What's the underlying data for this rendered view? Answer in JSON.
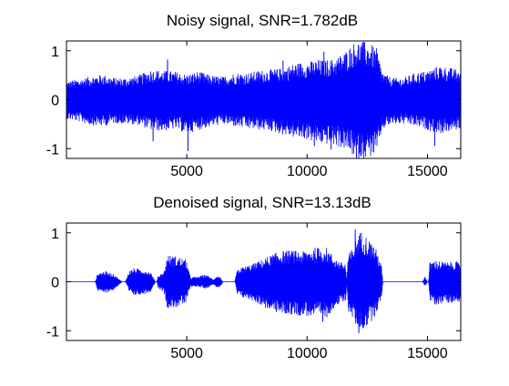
{
  "figure": {
    "background": "#ffffff",
    "line_color": "#0000ff",
    "axes_color": "#000000"
  },
  "chart_data": [
    {
      "type": "line",
      "title": "Noisy signal, SNR=1.782dB",
      "xlim": [
        1,
        16384
      ],
      "ylim": [
        -1.2,
        1.2
      ],
      "xticks": [
        5000,
        10000,
        15000
      ],
      "xtick_labels": [
        "5000",
        "10000",
        "15000"
      ],
      "yticks": [
        1,
        0,
        -1
      ],
      "ytick_labels": [
        "1",
        "0",
        "-1"
      ],
      "grid": false,
      "series": [
        {
          "color": "#0000ff",
          "envelope": {
            "x": [
              1,
              500,
              1000,
              1500,
              2000,
              2500,
              3000,
              3500,
              4000,
              4500,
              5000,
              5500,
              6000,
              6500,
              7000,
              7500,
              8000,
              8500,
              9000,
              9500,
              10000,
              10500,
              11000,
              11500,
              11800,
              12000,
              12300,
              12600,
              12900,
              13100,
              13300,
              13600,
              14000,
              14500,
              15000,
              15500,
              16000,
              16384
            ],
            "upper": [
              0.38,
              0.42,
              0.48,
              0.52,
              0.45,
              0.45,
              0.5,
              0.62,
              0.6,
              0.58,
              0.52,
              0.58,
              0.5,
              0.47,
              0.55,
              0.55,
              0.6,
              0.62,
              0.65,
              0.75,
              0.78,
              0.82,
              0.82,
              0.95,
              1.1,
              1.2,
              1.2,
              1.15,
              1.05,
              0.6,
              0.5,
              0.45,
              0.45,
              0.55,
              0.6,
              0.7,
              0.65,
              0.6
            ],
            "lower": [
              -0.4,
              -0.45,
              -0.52,
              -0.55,
              -0.48,
              -0.5,
              -0.52,
              -0.62,
              -0.65,
              -0.6,
              -0.7,
              -0.62,
              -0.55,
              -0.5,
              -0.55,
              -0.6,
              -0.62,
              -0.65,
              -0.72,
              -0.78,
              -0.82,
              -0.9,
              -0.92,
              -1.0,
              -1.1,
              -1.2,
              -1.2,
              -1.18,
              -1.1,
              -0.65,
              -0.55,
              -0.5,
              -0.5,
              -0.55,
              -0.62,
              -0.7,
              -0.65,
              -0.6
            ]
          },
          "spikes": [
            {
              "x": 4200,
              "y": 0.82
            },
            {
              "x": 5050,
              "y": -1.05
            },
            {
              "x": 3600,
              "y": -0.85
            },
            {
              "x": 9000,
              "y": 0.8
            },
            {
              "x": 10300,
              "y": -0.95
            },
            {
              "x": 10700,
              "y": 0.98
            },
            {
              "x": 11000,
              "y": -1.02
            },
            {
              "x": 12050,
              "y": -1.2
            },
            {
              "x": 15300,
              "y": -0.95
            }
          ]
        }
      ]
    },
    {
      "type": "line",
      "title": "Denoised signal, SNR=13.13dB",
      "xlim": [
        1,
        16384
      ],
      "ylim": [
        -1.2,
        1.2
      ],
      "xticks": [
        5000,
        10000,
        15000
      ],
      "xtick_labels": [
        "5000",
        "10000",
        "15000"
      ],
      "yticks": [
        1,
        0,
        -1
      ],
      "ytick_labels": [
        "1",
        "0",
        "-1"
      ],
      "grid": false,
      "series": [
        {
          "color": "#0000ff",
          "envelope": {
            "x": [
              1,
              1200,
              1300,
              1600,
              2000,
              2300,
              2450,
              2600,
              2800,
              3200,
              3500,
              3700,
              3750,
              3800,
              4050,
              4200,
              4600,
              5000,
              5050,
              5150,
              5400,
              5800,
              5900,
              6100,
              6250,
              6400,
              6500,
              7000,
              7050,
              7100,
              7300,
              7800,
              8300,
              8800,
              9300,
              9800,
              10300,
              10800,
              11100,
              11400,
              11600,
              11650,
              11700,
              11900,
              12100,
              12300,
              12500,
              12800,
              13000,
              13100,
              13150,
              13200,
              14800,
              14900,
              15000,
              15050,
              15100,
              15300,
              15800,
              16200,
              16384
            ],
            "upper": [
              0.0,
              0.0,
              0.18,
              0.22,
              0.15,
              0.0,
              0.0,
              0.22,
              0.28,
              0.25,
              0.2,
              0.0,
              0.0,
              0.12,
              0.2,
              0.55,
              0.52,
              0.45,
              0.3,
              0.1,
              0.1,
              0.15,
              0.12,
              0.05,
              0.12,
              0.1,
              0.0,
              0.0,
              0.15,
              0.25,
              0.3,
              0.38,
              0.5,
              0.62,
              0.65,
              0.62,
              0.7,
              0.7,
              0.52,
              0.4,
              0.38,
              0.0,
              0.55,
              0.7,
              0.98,
              1.05,
              0.9,
              0.75,
              0.5,
              0.3,
              0.0,
              0.0,
              0.0,
              0.12,
              0.0,
              0.0,
              0.4,
              0.45,
              0.4,
              0.42,
              0.35
            ],
            "lower": [
              0.0,
              0.0,
              -0.2,
              -0.24,
              -0.16,
              0.0,
              0.0,
              -0.22,
              -0.28,
              -0.26,
              -0.2,
              0.0,
              0.0,
              -0.12,
              -0.22,
              -0.55,
              -0.52,
              -0.45,
              -0.3,
              -0.1,
              -0.1,
              -0.14,
              -0.12,
              -0.05,
              -0.12,
              -0.1,
              0.0,
              0.0,
              -0.15,
              -0.28,
              -0.32,
              -0.4,
              -0.55,
              -0.65,
              -0.68,
              -0.7,
              -0.72,
              -0.75,
              -0.55,
              -0.45,
              -0.42,
              0.0,
              -0.6,
              -0.75,
              -1.0,
              -0.98,
              -0.92,
              -0.72,
              -0.5,
              -0.3,
              0.0,
              0.0,
              0.0,
              -0.1,
              0.0,
              0.0,
              -0.4,
              -0.48,
              -0.42,
              -0.45,
              -0.38
            ]
          },
          "spikes": [
            {
              "x": 10650,
              "y": -0.82
            },
            {
              "x": 12150,
              "y": -1.05
            },
            {
              "x": 12000,
              "y": 1.07
            }
          ]
        }
      ]
    }
  ]
}
